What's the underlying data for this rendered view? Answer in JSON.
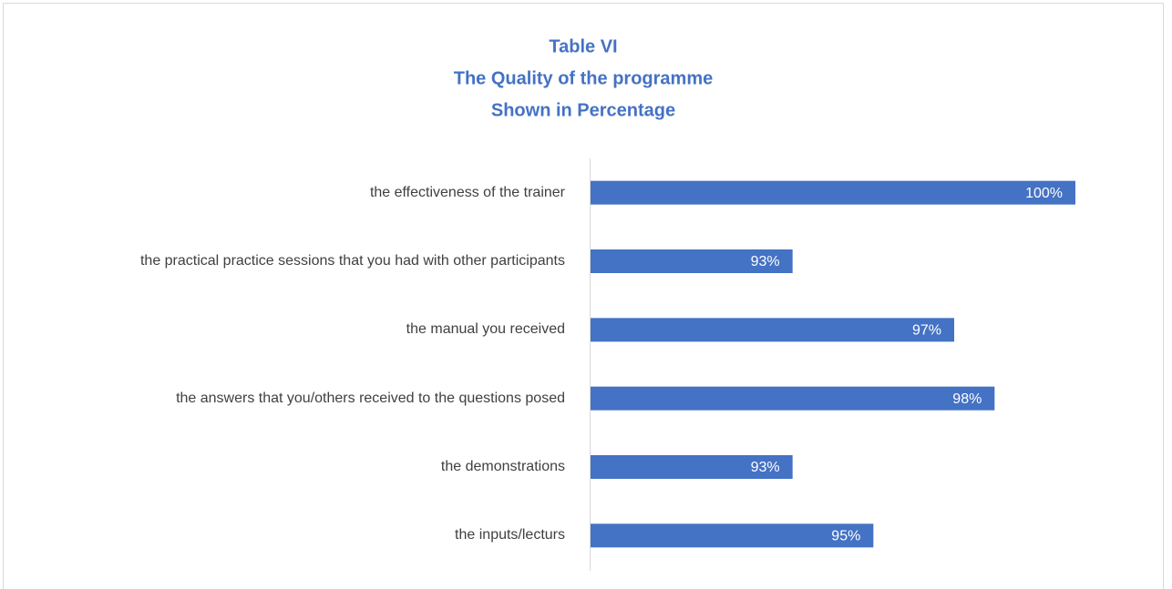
{
  "chart_data": {
    "type": "bar",
    "orientation": "horizontal",
    "title": [
      "Table VI",
      "The Quality of the programme",
      "Shown in Percentage"
    ],
    "categories": [
      "the effectiveness of the trainer",
      "the practical practice sessions that you had with other participants",
      "the manual you received",
      "the answers that you/others received to the questions posed",
      "the demonstrations",
      "the inputs/lecturs"
    ],
    "values": [
      100,
      93,
      97,
      98,
      93,
      95
    ],
    "value_labels": [
      "100%",
      "93%",
      "97%",
      "98%",
      "93%",
      "95%"
    ],
    "color": "#4472c4",
    "xlim": [
      88,
      100
    ]
  }
}
